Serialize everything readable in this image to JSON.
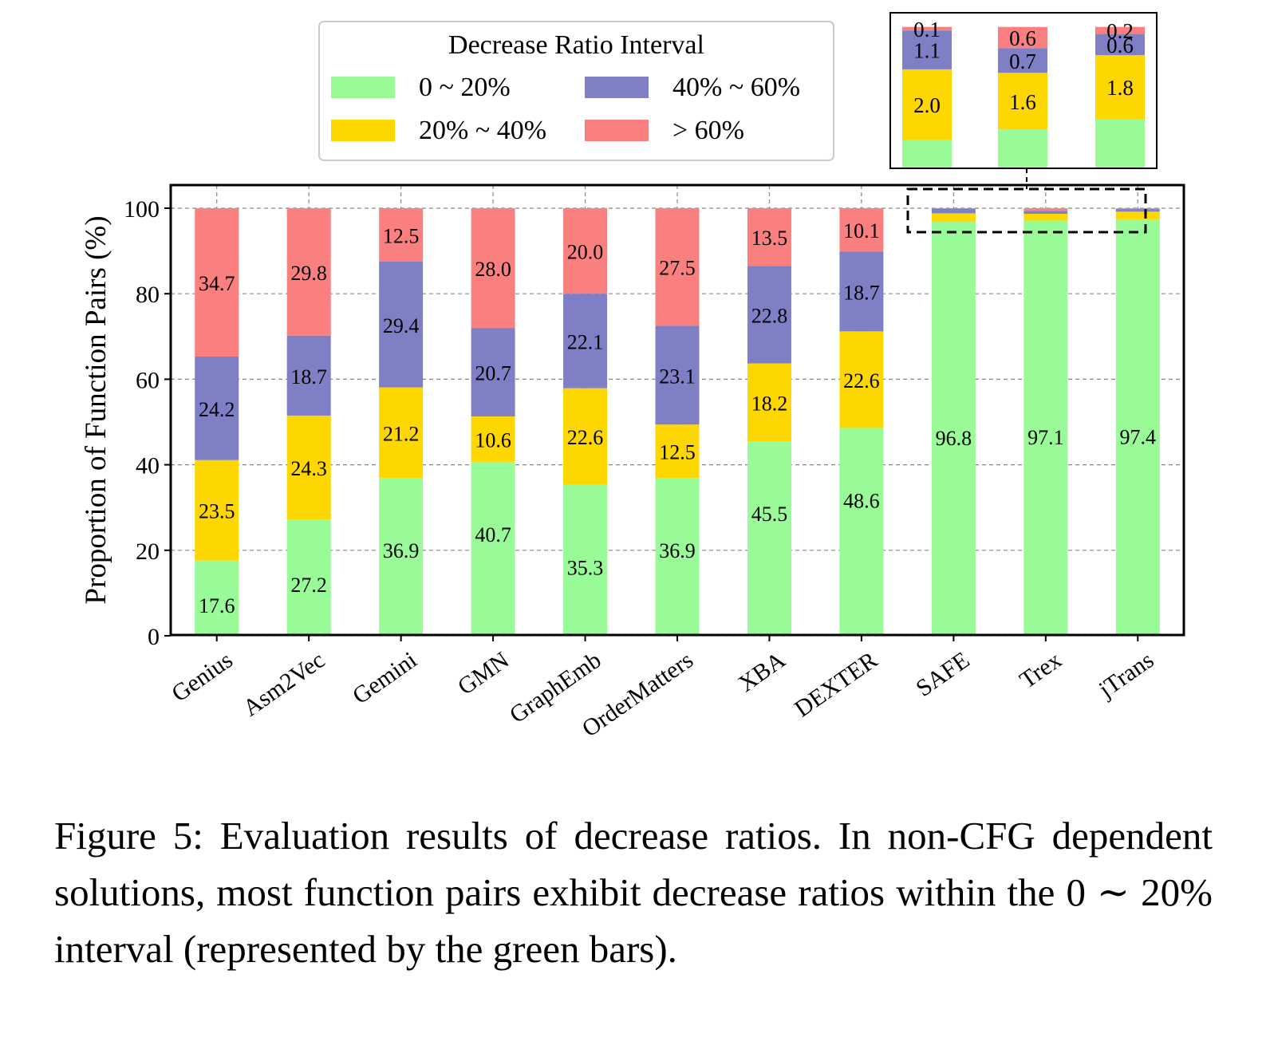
{
  "chart_data": {
    "type": "bar",
    "stacked": true,
    "ylabel": "Proportion of Function Pairs (%)",
    "xlabel": "",
    "ylim": [
      0,
      100
    ],
    "yticks": [
      "0",
      "20",
      "40",
      "60",
      "80",
      "100"
    ],
    "grid": true,
    "categories": [
      "Genius",
      "Asm2Vec",
      "Gemini",
      "GMN",
      "GraphEmb",
      "OrderMatters",
      "XBA",
      "DEXTER",
      "SAFE",
      "Trex",
      "jTrans"
    ],
    "legend": {
      "title": "Decrease Ratio Interval",
      "placement": "top-center"
    },
    "series": [
      {
        "name": "0 ~ 20%",
        "color": "#98fb98",
        "values": [
          17.6,
          27.2,
          36.9,
          40.7,
          35.3,
          36.9,
          45.5,
          48.6,
          96.8,
          97.1,
          97.4
        ],
        "labels": [
          "17.6",
          "27.2",
          "36.9",
          "40.7",
          "35.3",
          "36.9",
          "45.5",
          "48.6",
          "96.8",
          "97.1",
          "97.4"
        ]
      },
      {
        "name": "20% ~ 40%",
        "color": "#ffd700",
        "values": [
          23.5,
          24.3,
          21.2,
          10.6,
          22.6,
          12.5,
          18.2,
          22.6,
          2.0,
          1.6,
          1.8
        ],
        "labels": [
          "23.5",
          "24.3",
          "21.2",
          "10.6",
          "22.6",
          "12.5",
          "18.2",
          "22.6",
          "",
          "",
          ""
        ]
      },
      {
        "name": "40% ~ 60%",
        "color": "#7f7fc6",
        "values": [
          24.2,
          18.7,
          29.4,
          20.7,
          22.1,
          23.1,
          22.8,
          18.7,
          1.1,
          0.7,
          0.6
        ],
        "labels": [
          "24.2",
          "18.7",
          "29.4",
          "20.7",
          "22.1",
          "23.1",
          "22.8",
          "18.7",
          "",
          "",
          ""
        ]
      },
      {
        "name": "> 60%",
        "color": "#fa8080",
        "values": [
          34.7,
          29.8,
          12.5,
          28.0,
          20.0,
          27.5,
          13.5,
          10.1,
          0.1,
          0.6,
          0.2
        ],
        "labels": [
          "34.7",
          "29.8",
          "12.5",
          "28.0",
          "20.0",
          "27.5",
          "13.5",
          "10.1",
          "",
          "",
          ""
        ]
      }
    ],
    "inset": {
      "categories": [
        "SAFE",
        "Trex",
        "jTrans"
      ],
      "values": {
        "0 ~ 20%": [
          96.8,
          97.1,
          97.4
        ],
        "20% ~ 40%": [
          2.0,
          1.6,
          1.8
        ],
        "40% ~ 60%": [
          1.1,
          0.7,
          0.6
        ],
        "> 60%": [
          0.1,
          0.6,
          0.2
        ]
      },
      "labels": {
        "20% ~ 40%": [
          "2.0",
          "1.6",
          "1.8"
        ],
        "40% ~ 60%": [
          "1.1",
          "0.7",
          "0.6"
        ],
        "> 60%": [
          "0.1",
          "0.6",
          "0.2"
        ]
      }
    }
  },
  "caption": "Figure 5: Evaluation results of decrease ratios. In non-CFG dependent solutions, most function pairs exhibit decrease ratios within the 0 ∼ 20% interval (represented by the green bars)."
}
